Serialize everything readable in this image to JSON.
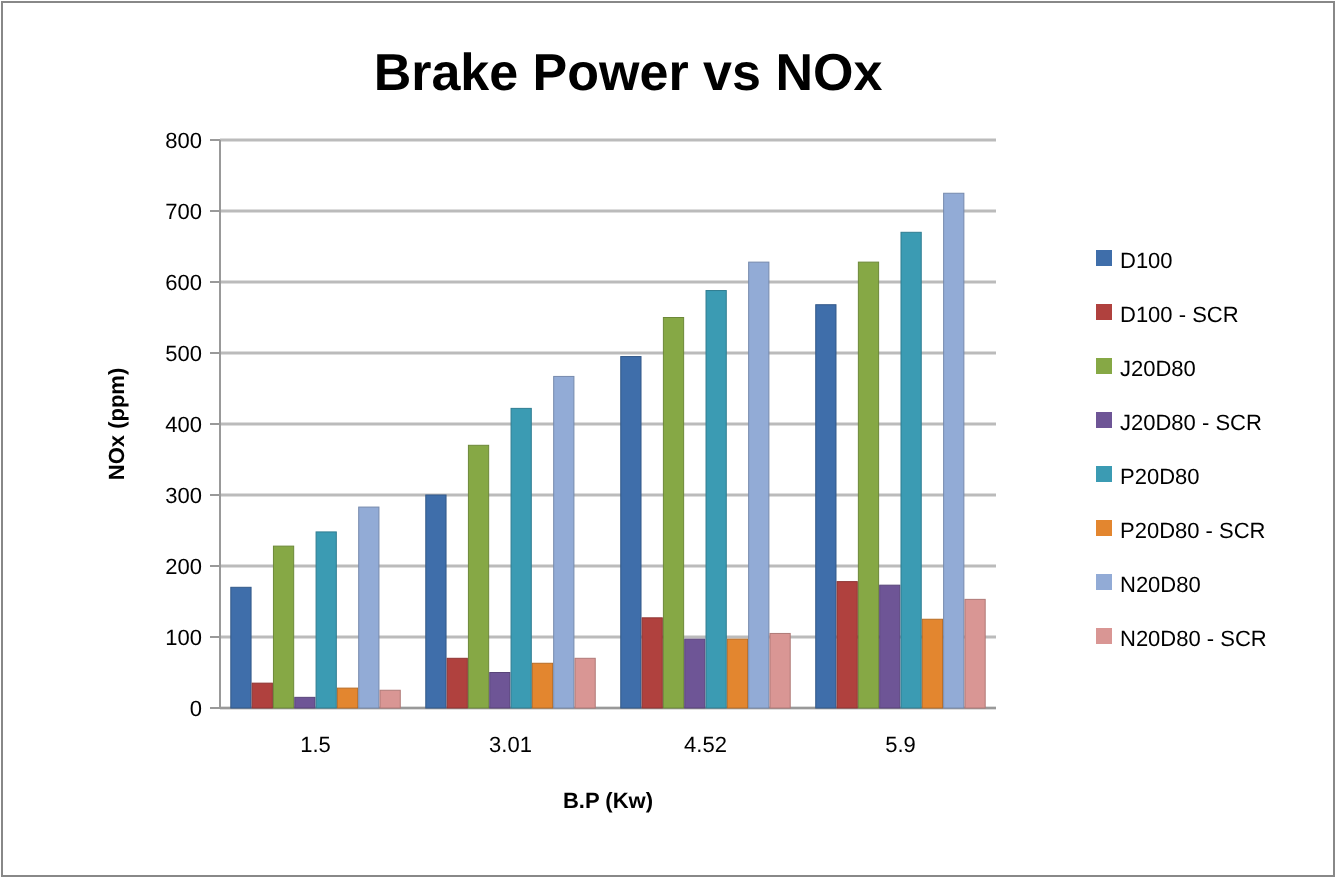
{
  "chart_data": {
    "type": "bar",
    "title": "Brake Power vs NOx",
    "xlabel": "B.P (Kw)",
    "ylabel": "NOx (ppm)",
    "categories": [
      "1.5",
      "3.01",
      "4.52",
      "5.9"
    ],
    "series": [
      {
        "name": "D100",
        "color": "#3f6eaa",
        "values": [
          170,
          300,
          495,
          568
        ]
      },
      {
        "name": "D100 - SCR",
        "color": "#b0413e",
        "values": [
          35,
          70,
          127,
          178
        ]
      },
      {
        "name": "J20D80",
        "color": "#86a845",
        "values": [
          228,
          370,
          550,
          628
        ]
      },
      {
        "name": "J20D80 - SCR",
        "color": "#6e5596",
        "values": [
          15,
          50,
          97,
          173
        ]
      },
      {
        "name": "P20D80",
        "color": "#3b9bb3",
        "values": [
          248,
          422,
          588,
          670
        ]
      },
      {
        "name": "P20D80 - SCR",
        "color": "#e3862f",
        "values": [
          28,
          63,
          97,
          125
        ]
      },
      {
        "name": "N20D80",
        "color": "#92abd6",
        "values": [
          283,
          467,
          628,
          725
        ]
      },
      {
        "name": "N20D80 - SCR",
        "color": "#d99694",
        "values": [
          25,
          70,
          105,
          153
        ]
      }
    ],
    "ylim": [
      0,
      800
    ],
    "yticks": [
      0,
      100,
      200,
      300,
      400,
      500,
      600,
      700,
      800
    ],
    "grid": "y",
    "legend": "right"
  }
}
